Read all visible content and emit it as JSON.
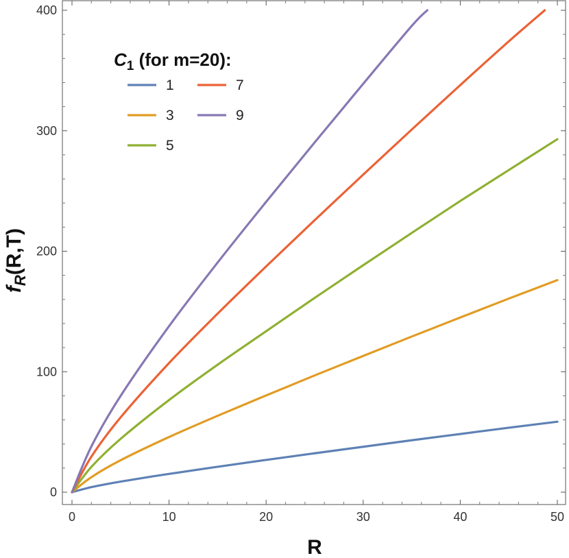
{
  "chart_data": {
    "type": "line",
    "xlabel": {
      "main": "R"
    },
    "ylabel": {
      "main": "f",
      "sub": "R",
      "rest": "(R,T)"
    },
    "xlim": [
      0,
      50
    ],
    "ylim": [
      0,
      400
    ],
    "xticks": [
      "0",
      "10",
      "20",
      "30",
      "40",
      "50"
    ],
    "yticks": [
      "0",
      "100",
      "200",
      "300",
      "400"
    ],
    "grid": false,
    "legend": {
      "placement": "top-left",
      "title_main": "C",
      "title_sub": "1",
      "title_rest": " (for m=20):"
    },
    "series": [
      {
        "name": "1",
        "color": "#5E81B5",
        "x": [
          0,
          2,
          5,
          10,
          15,
          20,
          25,
          30,
          35,
          40,
          45,
          50
        ],
        "y": [
          0,
          4.2,
          8.8,
          15.2,
          21.1,
          26.8,
          32.3,
          37.7,
          43.1,
          48.3,
          53.5,
          58.5
        ]
      },
      {
        "name": "3",
        "color": "#E19C24",
        "x": [
          0,
          2,
          5,
          10,
          15,
          20,
          25,
          30,
          35,
          40,
          45,
          50
        ],
        "y": [
          0,
          12.5,
          26.5,
          45.8,
          63.4,
          80.3,
          96.9,
          113.1,
          129.2,
          145,
          160.7,
          176
        ]
      },
      {
        "name": "5",
        "color": "#8FB032",
        "x": [
          0,
          2,
          5,
          10,
          15,
          20,
          25,
          30,
          35,
          40,
          45,
          50
        ],
        "y": [
          0,
          21,
          44.2,
          76.5,
          105.8,
          133.6,
          161.3,
          188.4,
          215.2,
          241.7,
          267.4,
          293
        ]
      },
      {
        "name": "7",
        "color": "#EB6235",
        "x": [
          0,
          2,
          5,
          10,
          15,
          20,
          25,
          30,
          35,
          40,
          45,
          48.7
        ],
        "y": [
          0,
          29.5,
          62,
          107.2,
          148.2,
          187.4,
          225.8,
          263.6,
          301,
          337.9,
          374.2,
          400
        ]
      },
      {
        "name": "9",
        "color": "#8778B3",
        "x": [
          0,
          2,
          5,
          10,
          15,
          20,
          25,
          30,
          35,
          36.6
        ],
        "y": [
          0,
          38,
          79.8,
          137.8,
          190.6,
          241,
          290.3,
          339,
          387,
          400
        ]
      }
    ]
  }
}
